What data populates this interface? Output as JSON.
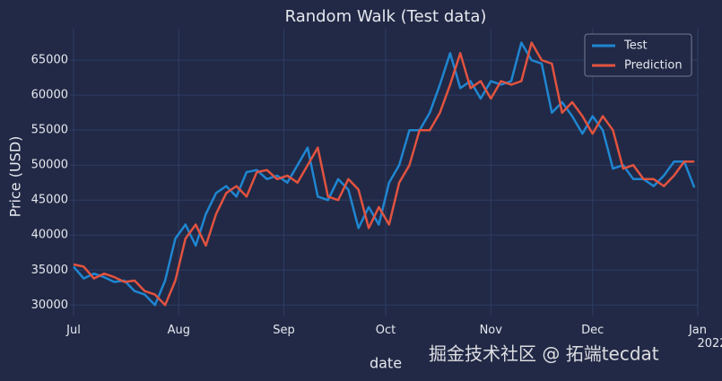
{
  "chart_data": {
    "type": "line",
    "title": "Random Walk (Test data)",
    "x_label": "date",
    "y_label": "Price (USD)",
    "watermark": "掘金技术社区 @ 拓端tecdat",
    "x": [
      0,
      3,
      6,
      9,
      12,
      15,
      18,
      21,
      24,
      27,
      30,
      33,
      36,
      39,
      42,
      45,
      48,
      51,
      54,
      57,
      60,
      63,
      66,
      69,
      72,
      75,
      78,
      81,
      84,
      87,
      90,
      93,
      96,
      99,
      102,
      105,
      108,
      111,
      114,
      117,
      120,
      123,
      126,
      129,
      132,
      135,
      138,
      141,
      144,
      147,
      150,
      153,
      156,
      159,
      162,
      165,
      168,
      171,
      174,
      177,
      180,
      183
    ],
    "series": [
      {
        "name": "Test",
        "color": "#1f86d1",
        "values": [
          35500,
          33800,
          34500,
          34000,
          33300,
          33500,
          32000,
          31500,
          30000,
          33500,
          39500,
          41500,
          38500,
          43000,
          46000,
          47000,
          45500,
          49000,
          49300,
          48000,
          48500,
          47500,
          50000,
          52500,
          45500,
          45000,
          48000,
          46500,
          41000,
          44000,
          41500,
          47500,
          50000,
          55000,
          55000,
          57500,
          61500,
          66000,
          61000,
          62000,
          59500,
          62000,
          61500,
          62000,
          67500,
          65000,
          64500,
          57500,
          59000,
          57000,
          54500,
          57000,
          55000,
          49500,
          50000,
          48000,
          48000,
          47000,
          48500,
          50500,
          50500,
          46800
        ]
      },
      {
        "name": "Prediction",
        "color": "#e2533f",
        "values": [
          35800,
          35500,
          33800,
          34500,
          34000,
          33300,
          33500,
          32000,
          31500,
          30000,
          33500,
          39500,
          41500,
          38500,
          43000,
          46000,
          47000,
          45500,
          49000,
          49300,
          48000,
          48500,
          47500,
          50000,
          52500,
          45500,
          45000,
          48000,
          46500,
          41000,
          44000,
          41500,
          47500,
          50000,
          55000,
          55000,
          57500,
          61500,
          66000,
          61000,
          62000,
          59500,
          62000,
          61500,
          62000,
          67500,
          65000,
          64500,
          57500,
          59000,
          57000,
          54500,
          57000,
          55000,
          49500,
          50000,
          48000,
          48000,
          47000,
          48500,
          50500,
          50500
        ]
      }
    ],
    "xlim": [
      0,
      184
    ],
    "xticks": [
      {
        "value": 0,
        "label": "Jul"
      },
      {
        "value": 31,
        "label": "Aug"
      },
      {
        "value": 62,
        "label": "Sep"
      },
      {
        "value": 92,
        "label": "Oct"
      },
      {
        "value": 123,
        "label": "Nov"
      },
      {
        "value": 153,
        "label": "Dec"
      },
      {
        "value": 184,
        "label": "Jan\n2022"
      }
    ],
    "ylim": [
      28500,
      69500
    ],
    "yticks": [
      30000,
      35000,
      40000,
      45000,
      50000,
      55000,
      60000,
      65000
    ],
    "grid": true,
    "legend": "upper right"
  }
}
